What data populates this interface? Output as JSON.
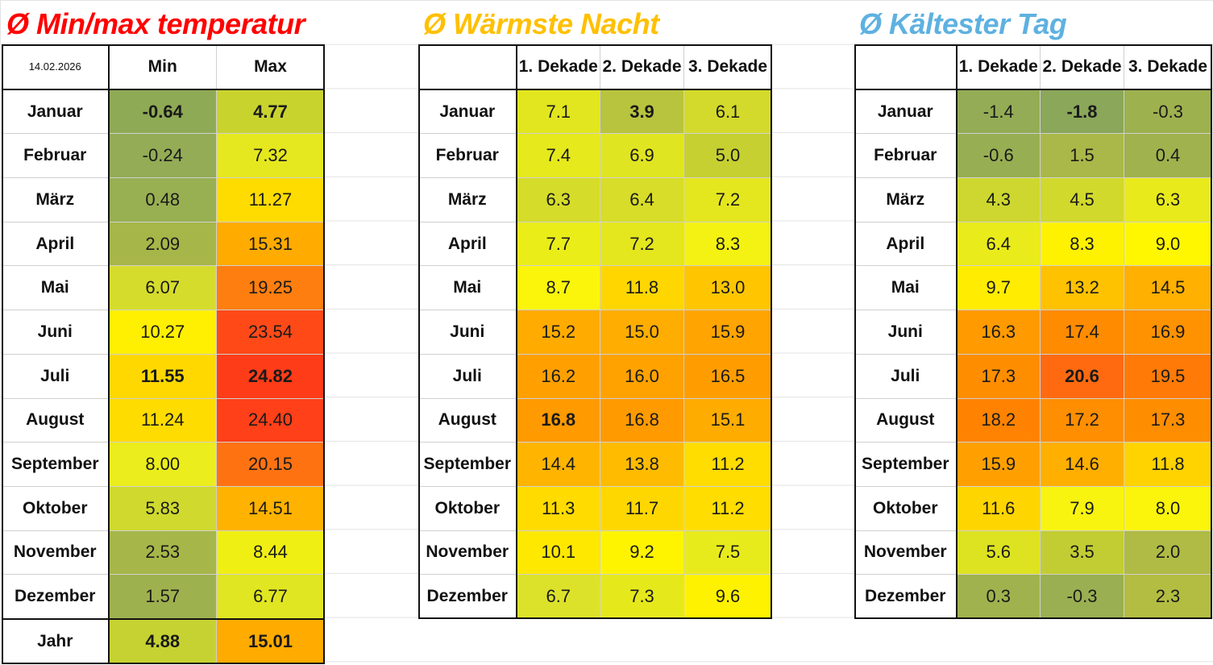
{
  "titles": {
    "minmax": "Ø Min/max temperatur",
    "warm": "Ø Wärmste Nacht",
    "cold": "Ø Kältester Tag"
  },
  "colors": {
    "minmax_title": "#ff0000",
    "warm_title": "#ffc000",
    "cold_title": "#5eb1e0"
  },
  "minmax": {
    "date": "14.02.2026",
    "headers": [
      "Min",
      "Max"
    ],
    "rows": [
      {
        "month": "Januar",
        "min": "-0.64",
        "max": "4.77",
        "minc": "#8faa55",
        "maxc": "#c9d32e",
        "bold": true
      },
      {
        "month": "Februar",
        "min": "-0.24",
        "max": "7.32",
        "minc": "#93ac55",
        "maxc": "#e5e81e"
      },
      {
        "month": "März",
        "min": "0.48",
        "max": "11.27",
        "minc": "#98af52",
        "maxc": "#ffdc00"
      },
      {
        "month": "April",
        "min": "2.09",
        "max": "15.31",
        "minc": "#a7b649",
        "maxc": "#ffab00"
      },
      {
        "month": "Mai",
        "min": "6.07",
        "max": "19.25",
        "minc": "#d6dc2c",
        "maxc": "#ff7e10"
      },
      {
        "month": "Juni",
        "min": "10.27",
        "max": "23.54",
        "minc": "#ffef00",
        "maxc": "#ff4a18"
      },
      {
        "month": "Juli",
        "min": "11.55",
        "max": "24.82",
        "minc": "#ffd800",
        "maxc": "#ff3c18",
        "bold": true
      },
      {
        "month": "August",
        "min": "11.24",
        "max": "24.40",
        "minc": "#ffdc00",
        "maxc": "#ff4018"
      },
      {
        "month": "September",
        "min": "8.00",
        "max": "20.15",
        "minc": "#ebed1c",
        "maxc": "#ff7212"
      },
      {
        "month": "Oktober",
        "min": "5.83",
        "max": "14.51",
        "minc": "#cfd92e",
        "maxc": "#ffb200"
      },
      {
        "month": "November",
        "min": "2.53",
        "max": "8.44",
        "minc": "#a7b649",
        "maxc": "#f0ef14"
      },
      {
        "month": "Dezember",
        "min": "1.57",
        "max": "6.77",
        "minc": "#9eb14f",
        "maxc": "#e0e621"
      }
    ],
    "year": {
      "label": "Jahr",
      "min": "4.88",
      "max": "15.01",
      "minc": "#c6d231",
      "maxc": "#ffab00"
    }
  },
  "warm": {
    "headers": [
      "1. Dekade",
      "2. Dekade",
      "3. Dekade"
    ],
    "rows": [
      {
        "month": "Januar",
        "v": [
          "7.1",
          "3.9",
          "6.1"
        ],
        "c": [
          "#e2e61f",
          "#b8c43d",
          "#d3da2b"
        ],
        "b": [
          false,
          true,
          false
        ]
      },
      {
        "month": "Februar",
        "v": [
          "7.4",
          "6.9",
          "5.0"
        ],
        "c": [
          "#e6e91c",
          "#e0e521",
          "#c6d031"
        ]
      },
      {
        "month": "März",
        "v": [
          "6.3",
          "6.4",
          "7.2"
        ],
        "c": [
          "#d6dc2a",
          "#d8dd29",
          "#e4e71e"
        ]
      },
      {
        "month": "April",
        "v": [
          "7.7",
          "7.2",
          "8.3"
        ],
        "c": [
          "#ebed19",
          "#e4e71e",
          "#f4f212"
        ]
      },
      {
        "month": "Mai",
        "v": [
          "8.7",
          "11.8",
          "13.0"
        ],
        "c": [
          "#fbf50c",
          "#ffd600",
          "#ffc600"
        ]
      },
      {
        "month": "Juni",
        "v": [
          "15.2",
          "15.0",
          "15.9"
        ],
        "c": [
          "#ffab00",
          "#ffad00",
          "#ffa400"
        ]
      },
      {
        "month": "Juli",
        "v": [
          "16.2",
          "16.0",
          "16.5"
        ],
        "c": [
          "#ffa000",
          "#ffa200",
          "#ff9d00"
        ]
      },
      {
        "month": "August",
        "v": [
          "16.8",
          "16.8",
          "15.1"
        ],
        "c": [
          "#ff9a00",
          "#ff9a00",
          "#ffac00"
        ],
        "b": [
          true,
          false,
          false
        ]
      },
      {
        "month": "September",
        "v": [
          "14.4",
          "13.8",
          "11.2"
        ],
        "c": [
          "#ffb400",
          "#ffbb00",
          "#ffdd00"
        ]
      },
      {
        "month": "Oktober",
        "v": [
          "11.3",
          "11.7",
          "11.2"
        ],
        "c": [
          "#ffdb00",
          "#ffd700",
          "#ffdd00"
        ]
      },
      {
        "month": "November",
        "v": [
          "10.1",
          "9.2",
          "7.5"
        ],
        "c": [
          "#ffe800",
          "#fff400",
          "#e8eb1b"
        ]
      },
      {
        "month": "Dezember",
        "v": [
          "6.7",
          "7.3",
          "9.6"
        ],
        "c": [
          "#dce22a",
          "#e5e91c",
          "#fff200"
        ]
      }
    ]
  },
  "cold": {
    "headers": [
      "1. Dekade",
      "2. Dekade",
      "3. Dekade"
    ],
    "rows": [
      {
        "month": "Januar",
        "v": [
          "-1.4",
          "-1.8",
          "-0.3"
        ],
        "c": [
          "#93ac55",
          "#8aa75a",
          "#9db14f"
        ],
        "b": [
          false,
          true,
          false
        ]
      },
      {
        "month": "Februar",
        "v": [
          "-0.6",
          "1.5",
          "0.4"
        ],
        "c": [
          "#98ae53",
          "#a9b848",
          "#a0b24d"
        ]
      },
      {
        "month": "März",
        "v": [
          "4.3",
          "4.5",
          "6.3"
        ],
        "c": [
          "#cdd72f",
          "#d1d92d",
          "#e8ea1b"
        ]
      },
      {
        "month": "April",
        "v": [
          "6.4",
          "8.3",
          "9.0"
        ],
        "c": [
          "#e9ec1a",
          "#fff200",
          "#fff700"
        ]
      },
      {
        "month": "Mai",
        "v": [
          "9.7",
          "13.2",
          "14.5"
        ],
        "c": [
          "#ffec00",
          "#ffc200",
          "#ffb000"
        ]
      },
      {
        "month": "Juni",
        "v": [
          "16.3",
          "17.4",
          "16.9"
        ],
        "c": [
          "#ff9a00",
          "#ff8b00",
          "#ff9200"
        ]
      },
      {
        "month": "Juli",
        "v": [
          "17.3",
          "20.6",
          "19.5"
        ],
        "c": [
          "#ff8d00",
          "#ff6a10",
          "#ff7a06"
        ],
        "b": [
          false,
          true,
          false
        ]
      },
      {
        "month": "August",
        "v": [
          "18.2",
          "17.2",
          "17.3"
        ],
        "c": [
          "#ff8300",
          "#ff8e00",
          "#ff8d00"
        ]
      },
      {
        "month": "September",
        "v": [
          "15.9",
          "14.6",
          "11.8"
        ],
        "c": [
          "#ffa000",
          "#ffaf00",
          "#ffd300"
        ]
      },
      {
        "month": "Oktober",
        "v": [
          "11.6",
          "7.9",
          "8.0"
        ],
        "c": [
          "#ffd500",
          "#f8f410",
          "#fbf50c"
        ]
      },
      {
        "month": "November",
        "v": [
          "5.6",
          "3.5",
          "2.0"
        ],
        "c": [
          "#dde221",
          "#c2cd33",
          "#afbb44"
        ]
      },
      {
        "month": "Dezember",
        "v": [
          "0.3",
          "-0.3",
          "2.3"
        ],
        "c": [
          "#a0b24d",
          "#9aaf51",
          "#b3bd42"
        ]
      }
    ]
  }
}
